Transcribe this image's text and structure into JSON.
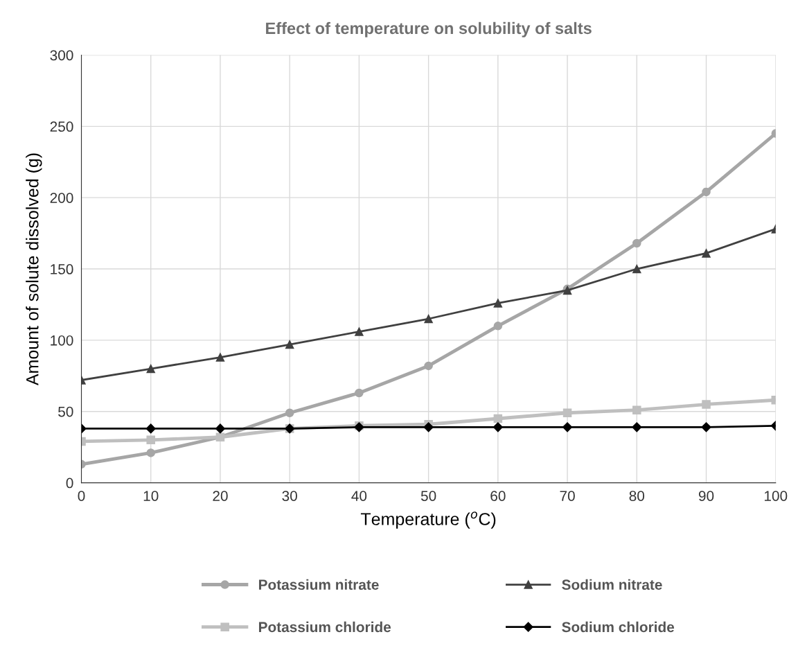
{
  "chart_data": {
    "type": "line",
    "title": "Effect of temperature on solubility of salts",
    "xlabel": "Temperature ($^{o}$C)",
    "ylabel": "Amount of solute dissolved (g)",
    "x": [
      0,
      10,
      20,
      30,
      40,
      50,
      60,
      70,
      80,
      90,
      100
    ],
    "series": [
      {
        "name": "Potassium nitrate",
        "color": "#a6a6a6",
        "marker": "circle",
        "values": [
          13,
          21,
          32,
          49,
          63,
          82,
          110,
          136,
          168,
          204,
          245
        ]
      },
      {
        "name": "Sodium nitrate",
        "color": "#404040",
        "marker": "triangle",
        "values": [
          72,
          80,
          88,
          97,
          106,
          115,
          126,
          135,
          150,
          161,
          178
        ]
      },
      {
        "name": "Potassium chloride",
        "color": "#bfbfbf",
        "marker": "square",
        "values": [
          29,
          30,
          32,
          38,
          40,
          41,
          45,
          49,
          51,
          55,
          58
        ]
      },
      {
        "name": "Sodium chloride",
        "color": "#000000",
        "marker": "diamond",
        "values": [
          38,
          38,
          38,
          38,
          39,
          39,
          39,
          39,
          39,
          39,
          40
        ]
      }
    ],
    "xlim": [
      0,
      100
    ],
    "xticks": [
      0,
      10,
      20,
      30,
      40,
      50,
      60,
      70,
      80,
      90,
      100
    ],
    "ylim": [
      0,
      300
    ],
    "yticks": [
      0,
      50,
      100,
      150,
      200,
      250,
      300
    ],
    "grid": true,
    "legend": "bottom",
    "line_style": "solid"
  }
}
